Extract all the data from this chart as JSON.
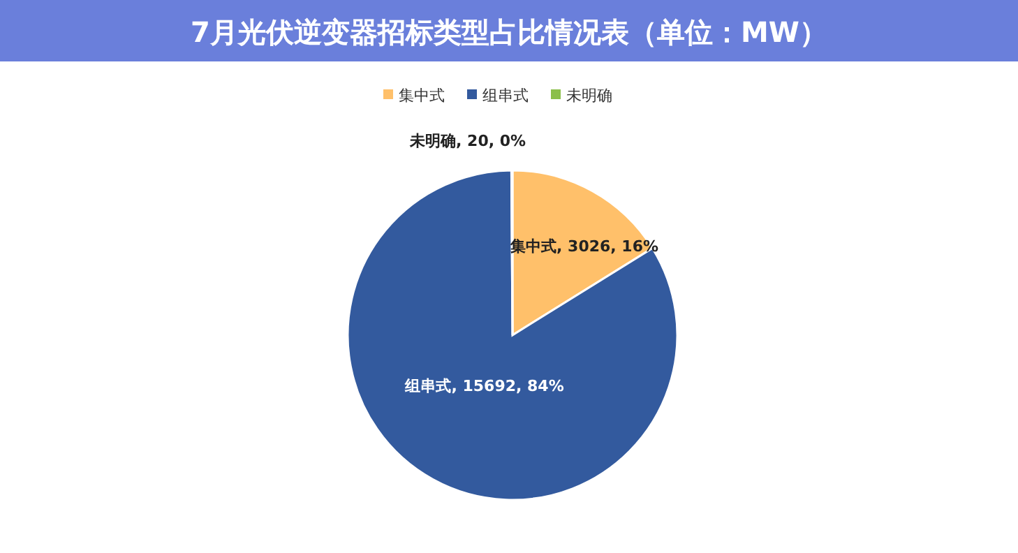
{
  "chart_data": {
    "type": "pie",
    "title": "7月光伏逆变器招标类型占比情况表（单位：MW）",
    "categories": [
      "集中式",
      "组串式",
      "未明确"
    ],
    "values": [
      3026,
      15692,
      20
    ],
    "colors": [
      "#ffc06a",
      "#335a9e",
      "#8bbf4a"
    ],
    "value_labels": [
      "集中式, 3026, 16%",
      "组串式, 15692, 84%",
      "未明确, 20, 0%"
    ],
    "legend": "top"
  }
}
